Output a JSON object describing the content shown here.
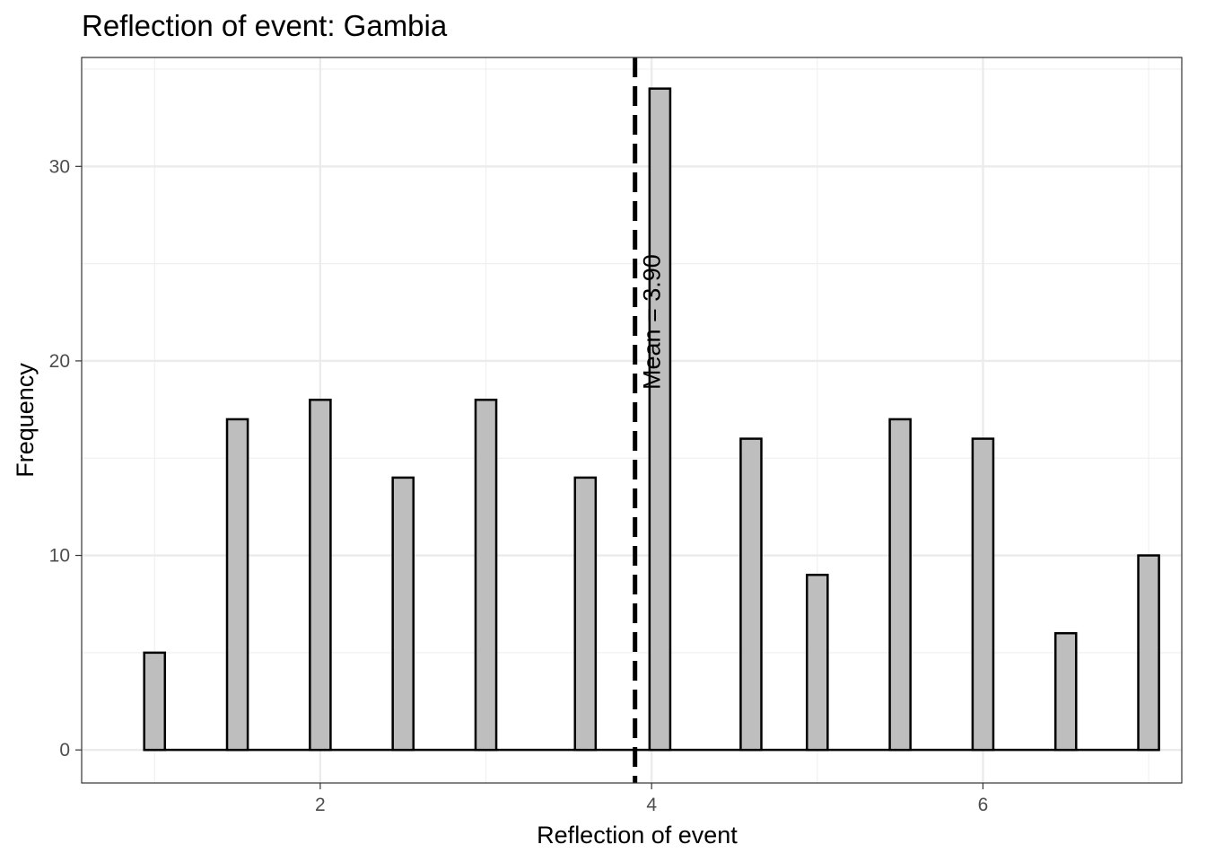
{
  "chart_data": {
    "type": "bar",
    "title": "Reflection of event: Gambia",
    "xlabel": "Reflection of event",
    "ylabel": "Frequency",
    "x_ticks": [
      2,
      4,
      6
    ],
    "y_ticks": [
      0,
      10,
      20,
      30
    ],
    "xlim": [
      0.56,
      7.2
    ],
    "ylim": [
      -1.7,
      35.6
    ],
    "bin_width": 0.125,
    "bars": [
      {
        "x": 1.0,
        "value": 5
      },
      {
        "x": 1.5,
        "value": 17
      },
      {
        "x": 2.0,
        "value": 18
      },
      {
        "x": 2.5,
        "value": 14
      },
      {
        "x": 3.0,
        "value": 18
      },
      {
        "x": 3.6,
        "value": 14
      },
      {
        "x": 4.05,
        "value": 34
      },
      {
        "x": 4.6,
        "value": 16
      },
      {
        "x": 5.0,
        "value": 9
      },
      {
        "x": 5.5,
        "value": 17
      },
      {
        "x": 6.0,
        "value": 16
      },
      {
        "x": 6.5,
        "value": 6
      },
      {
        "x": 7.0,
        "value": 10
      }
    ],
    "mean": 3.9,
    "mean_label": "Mean = 3.90",
    "bar_fill": "#bebebe",
    "bar_stroke": "#000000",
    "grid": true
  }
}
